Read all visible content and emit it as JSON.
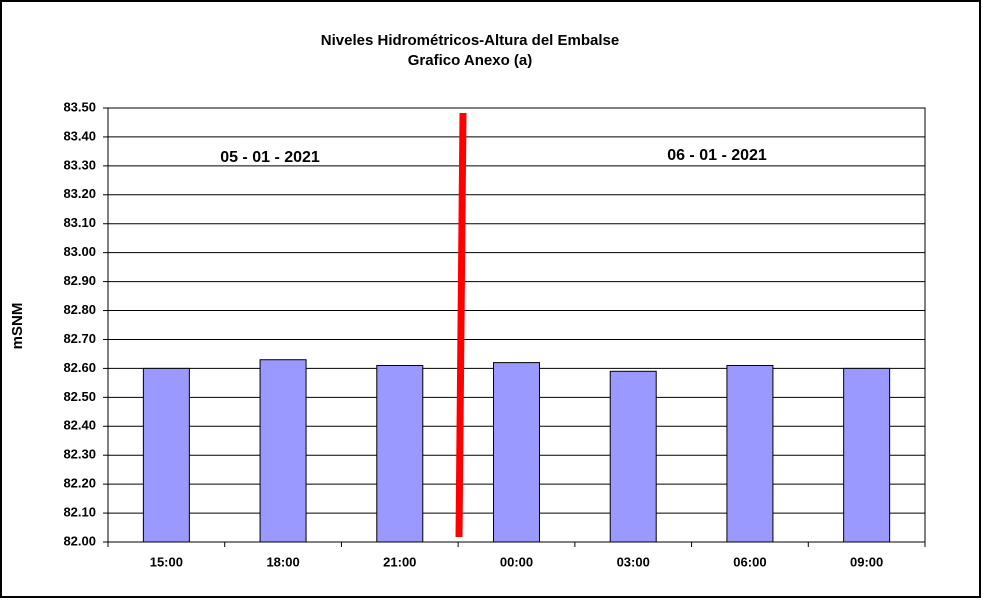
{
  "chart_data": {
    "type": "bar",
    "title": "Niveles Hidrométricos-Altura del Embalse",
    "subtitle": "Grafico Anexo (a)",
    "y_label": "mSNM",
    "annotations": [
      "05 - 01 - 2021",
      "06 - 01 - 2021"
    ],
    "categories": [
      "15:00",
      "18:00",
      "21:00",
      "00:00",
      "03:00",
      "06:00",
      "09:00"
    ],
    "values": [
      82.6,
      82.63,
      82.61,
      82.62,
      82.59,
      82.61,
      82.6
    ],
    "color": "#9999ff",
    "ylim": [
      82.0,
      83.5
    ],
    "yticks": [
      {
        "value": 82.0,
        "label": "82.00"
      },
      {
        "value": 82.1,
        "label": "82.10"
      },
      {
        "value": 82.2,
        "label": "82.20"
      },
      {
        "value": 82.3,
        "label": "82.30"
      },
      {
        "value": 82.4,
        "label": "82.40"
      },
      {
        "value": 82.5,
        "label": "82.50"
      },
      {
        "value": 82.6,
        "label": "82.60"
      },
      {
        "value": 82.7,
        "label": "82.70"
      },
      {
        "value": 82.8,
        "label": "82.80"
      },
      {
        "value": 82.9,
        "label": "82.90"
      },
      {
        "value": 83.0,
        "label": "83.00"
      },
      {
        "value": 83.1,
        "label": "83.10"
      },
      {
        "value": 83.2,
        "label": "83.20"
      },
      {
        "value": 83.3,
        "label": "83.30"
      },
      {
        "value": 83.4,
        "label": "83.40"
      },
      {
        "value": 83.5,
        "label": "83.50"
      }
    ],
    "grid": true
  }
}
